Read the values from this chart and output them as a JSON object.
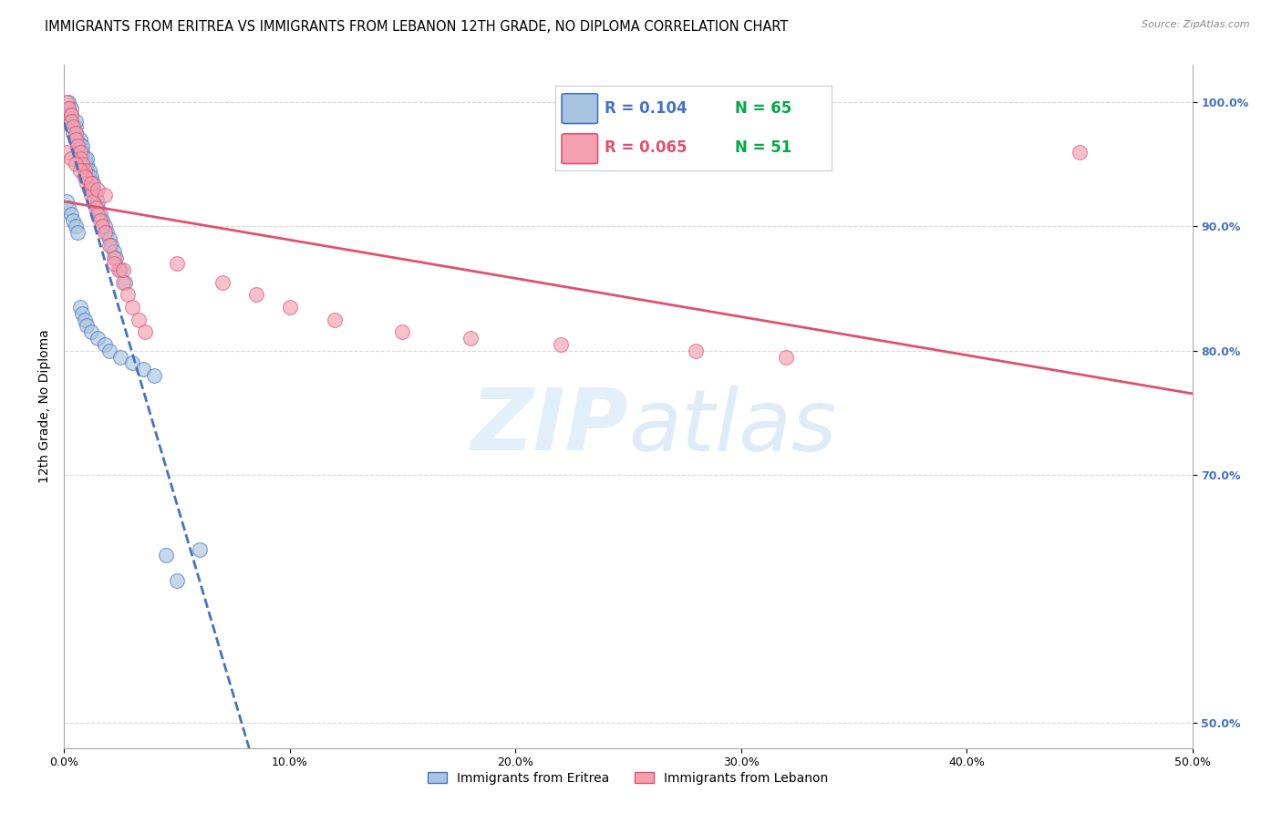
{
  "title": "IMMIGRANTS FROM ERITREA VS IMMIGRANTS FROM LEBANON 12TH GRADE, NO DIPLOMA CORRELATION CHART",
  "source": "Source: ZipAtlas.com",
  "ylabel": "12th Grade, No Diploma",
  "xlim": [
    0.0,
    0.5
  ],
  "ylim": [
    0.48,
    1.03
  ],
  "eritrea_color": "#a8c4e0",
  "lebanon_color": "#f4a0b0",
  "eritrea_line_color": "#4472c4",
  "lebanon_line_color": "#e05070",
  "legend_R_eritrea": "R = 0.104",
  "legend_N_eritrea": "N = 65",
  "legend_R_lebanon": "R = 0.065",
  "legend_N_lebanon": "N = 51",
  "legend_color_eritrea": "#4472c4",
  "legend_color_lebanon": "#e05070",
  "legend_color_N": "#00aa44",
  "eritrea_scatter_x": [
    0.001,
    0.002,
    0.002,
    0.003,
    0.003,
    0.003,
    0.004,
    0.004,
    0.005,
    0.005,
    0.005,
    0.005,
    0.006,
    0.006,
    0.007,
    0.007,
    0.007,
    0.008,
    0.008,
    0.008,
    0.009,
    0.009,
    0.01,
    0.01,
    0.01,
    0.011,
    0.011,
    0.012,
    0.012,
    0.013,
    0.013,
    0.014,
    0.015,
    0.015,
    0.016,
    0.017,
    0.018,
    0.019,
    0.02,
    0.021,
    0.022,
    0.023,
    0.025,
    0.027,
    0.001,
    0.002,
    0.003,
    0.004,
    0.005,
    0.006,
    0.007,
    0.008,
    0.009,
    0.01,
    0.012,
    0.015,
    0.018,
    0.02,
    0.025,
    0.03,
    0.035,
    0.04,
    0.045,
    0.05,
    0.06
  ],
  "eritrea_scatter_y": [
    0.99,
    0.995,
    1.0,
    0.985,
    0.99,
    0.995,
    0.975,
    0.98,
    0.97,
    0.975,
    0.98,
    0.985,
    0.965,
    0.97,
    0.96,
    0.965,
    0.97,
    0.955,
    0.96,
    0.965,
    0.95,
    0.955,
    0.945,
    0.95,
    0.955,
    0.94,
    0.945,
    0.935,
    0.94,
    0.93,
    0.935,
    0.925,
    0.915,
    0.92,
    0.91,
    0.905,
    0.9,
    0.895,
    0.89,
    0.885,
    0.88,
    0.875,
    0.865,
    0.855,
    0.92,
    0.915,
    0.91,
    0.905,
    0.9,
    0.895,
    0.835,
    0.83,
    0.825,
    0.82,
    0.815,
    0.81,
    0.805,
    0.8,
    0.795,
    0.79,
    0.785,
    0.78,
    0.635,
    0.615,
    0.64
  ],
  "lebanon_scatter_x": [
    0.001,
    0.002,
    0.003,
    0.003,
    0.004,
    0.005,
    0.005,
    0.006,
    0.007,
    0.007,
    0.008,
    0.009,
    0.009,
    0.01,
    0.011,
    0.012,
    0.013,
    0.014,
    0.015,
    0.016,
    0.017,
    0.018,
    0.02,
    0.022,
    0.024,
    0.026,
    0.028,
    0.03,
    0.033,
    0.036,
    0.001,
    0.003,
    0.005,
    0.007,
    0.009,
    0.012,
    0.015,
    0.018,
    0.022,
    0.026,
    0.05,
    0.07,
    0.085,
    0.1,
    0.12,
    0.15,
    0.18,
    0.22,
    0.28,
    0.32,
    0.45
  ],
  "lebanon_scatter_y": [
    1.0,
    0.995,
    0.99,
    0.985,
    0.98,
    0.975,
    0.97,
    0.965,
    0.96,
    0.955,
    0.95,
    0.945,
    0.94,
    0.935,
    0.93,
    0.925,
    0.92,
    0.915,
    0.91,
    0.905,
    0.9,
    0.895,
    0.885,
    0.875,
    0.865,
    0.855,
    0.845,
    0.835,
    0.825,
    0.815,
    0.96,
    0.955,
    0.95,
    0.945,
    0.94,
    0.935,
    0.93,
    0.925,
    0.87,
    0.865,
    0.87,
    0.855,
    0.845,
    0.835,
    0.825,
    0.815,
    0.81,
    0.805,
    0.8,
    0.795,
    0.96
  ],
  "watermark_zip": "ZIP",
  "watermark_atlas": "atlas",
  "background_color": "#ffffff",
  "grid_color": "#d8d8d8",
  "title_fontsize": 10.5,
  "axis_label_fontsize": 10,
  "tick_fontsize": 9,
  "legend_fontsize": 12
}
